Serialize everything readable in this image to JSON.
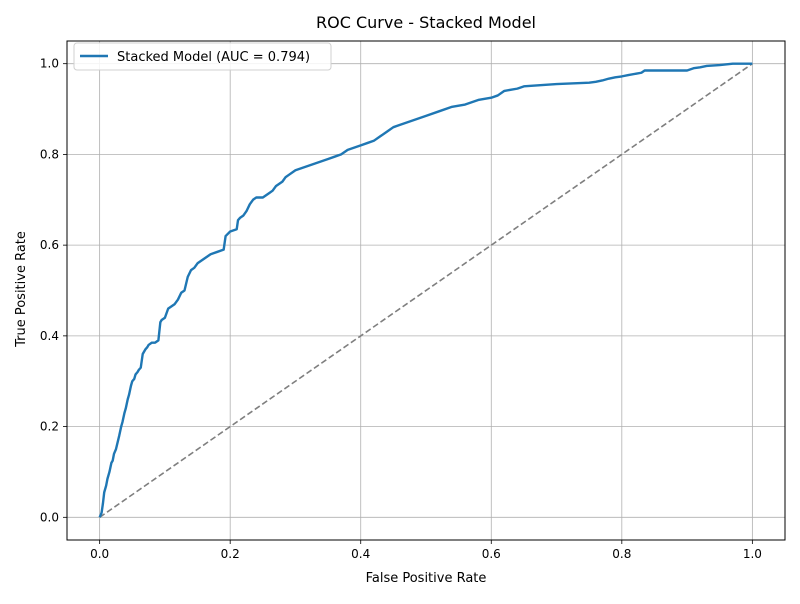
{
  "chart_data": {
    "type": "line",
    "title": "ROC Curve - Stacked Model",
    "xlabel": "False Positive Rate",
    "ylabel": "True Positive Rate",
    "xlim": [
      -0.05,
      1.05
    ],
    "ylim": [
      -0.05,
      1.05
    ],
    "x_ticks": [
      "0.0",
      "0.2",
      "0.4",
      "0.6",
      "0.8",
      "1.0"
    ],
    "y_ticks": [
      "0.0",
      "0.2",
      "0.4",
      "0.6",
      "0.8",
      "1.0"
    ],
    "grid": true,
    "legend_position": "upper-left",
    "series": [
      {
        "name": "Stacked Model (AUC = 0.794)",
        "color": "#1f77b4",
        "style": "solid",
        "x": [
          0.0,
          0.003,
          0.005,
          0.007,
          0.01,
          0.012,
          0.015,
          0.018,
          0.02,
          0.022,
          0.025,
          0.03,
          0.033,
          0.035,
          0.038,
          0.04,
          0.043,
          0.045,
          0.048,
          0.05,
          0.053,
          0.055,
          0.058,
          0.06,
          0.063,
          0.066,
          0.07,
          0.073,
          0.075,
          0.08,
          0.085,
          0.09,
          0.093,
          0.095,
          0.1,
          0.105,
          0.11,
          0.115,
          0.12,
          0.125,
          0.13,
          0.135,
          0.14,
          0.145,
          0.15,
          0.155,
          0.16,
          0.165,
          0.17,
          0.18,
          0.19,
          0.193,
          0.2,
          0.21,
          0.212,
          0.215,
          0.22,
          0.225,
          0.23,
          0.235,
          0.24,
          0.25,
          0.26,
          0.265,
          0.27,
          0.275,
          0.28,
          0.285,
          0.29,
          0.3,
          0.31,
          0.32,
          0.33,
          0.34,
          0.35,
          0.36,
          0.37,
          0.38,
          0.39,
          0.4,
          0.41,
          0.42,
          0.43,
          0.44,
          0.45,
          0.46,
          0.48,
          0.5,
          0.52,
          0.54,
          0.56,
          0.58,
          0.6,
          0.61,
          0.62,
          0.64,
          0.65,
          0.7,
          0.75,
          0.76,
          0.77,
          0.78,
          0.79,
          0.8,
          0.81,
          0.83,
          0.835,
          0.9,
          0.91,
          0.92,
          0.93,
          0.95,
          0.97,
          1.0
        ],
        "y": [
          0.0,
          0.01,
          0.03,
          0.055,
          0.07,
          0.085,
          0.1,
          0.12,
          0.125,
          0.14,
          0.15,
          0.18,
          0.2,
          0.21,
          0.23,
          0.24,
          0.26,
          0.27,
          0.29,
          0.3,
          0.305,
          0.315,
          0.32,
          0.325,
          0.33,
          0.36,
          0.37,
          0.375,
          0.38,
          0.385,
          0.385,
          0.39,
          0.43,
          0.435,
          0.44,
          0.46,
          0.465,
          0.47,
          0.48,
          0.495,
          0.5,
          0.53,
          0.545,
          0.55,
          0.56,
          0.565,
          0.57,
          0.575,
          0.58,
          0.585,
          0.59,
          0.62,
          0.63,
          0.635,
          0.655,
          0.66,
          0.665,
          0.675,
          0.69,
          0.7,
          0.705,
          0.705,
          0.715,
          0.72,
          0.73,
          0.735,
          0.74,
          0.75,
          0.755,
          0.765,
          0.77,
          0.775,
          0.78,
          0.785,
          0.79,
          0.795,
          0.8,
          0.81,
          0.815,
          0.82,
          0.825,
          0.83,
          0.84,
          0.85,
          0.86,
          0.865,
          0.875,
          0.885,
          0.895,
          0.905,
          0.91,
          0.92,
          0.925,
          0.93,
          0.94,
          0.945,
          0.95,
          0.955,
          0.958,
          0.96,
          0.963,
          0.967,
          0.97,
          0.972,
          0.975,
          0.98,
          0.985,
          0.985,
          0.99,
          0.992,
          0.995,
          0.997,
          1.0,
          1.0
        ]
      },
      {
        "name": "",
        "color": "#7f7f7f",
        "style": "dashed",
        "x": [
          0.0,
          1.0
        ],
        "y": [
          0.0,
          1.0
        ]
      }
    ]
  }
}
